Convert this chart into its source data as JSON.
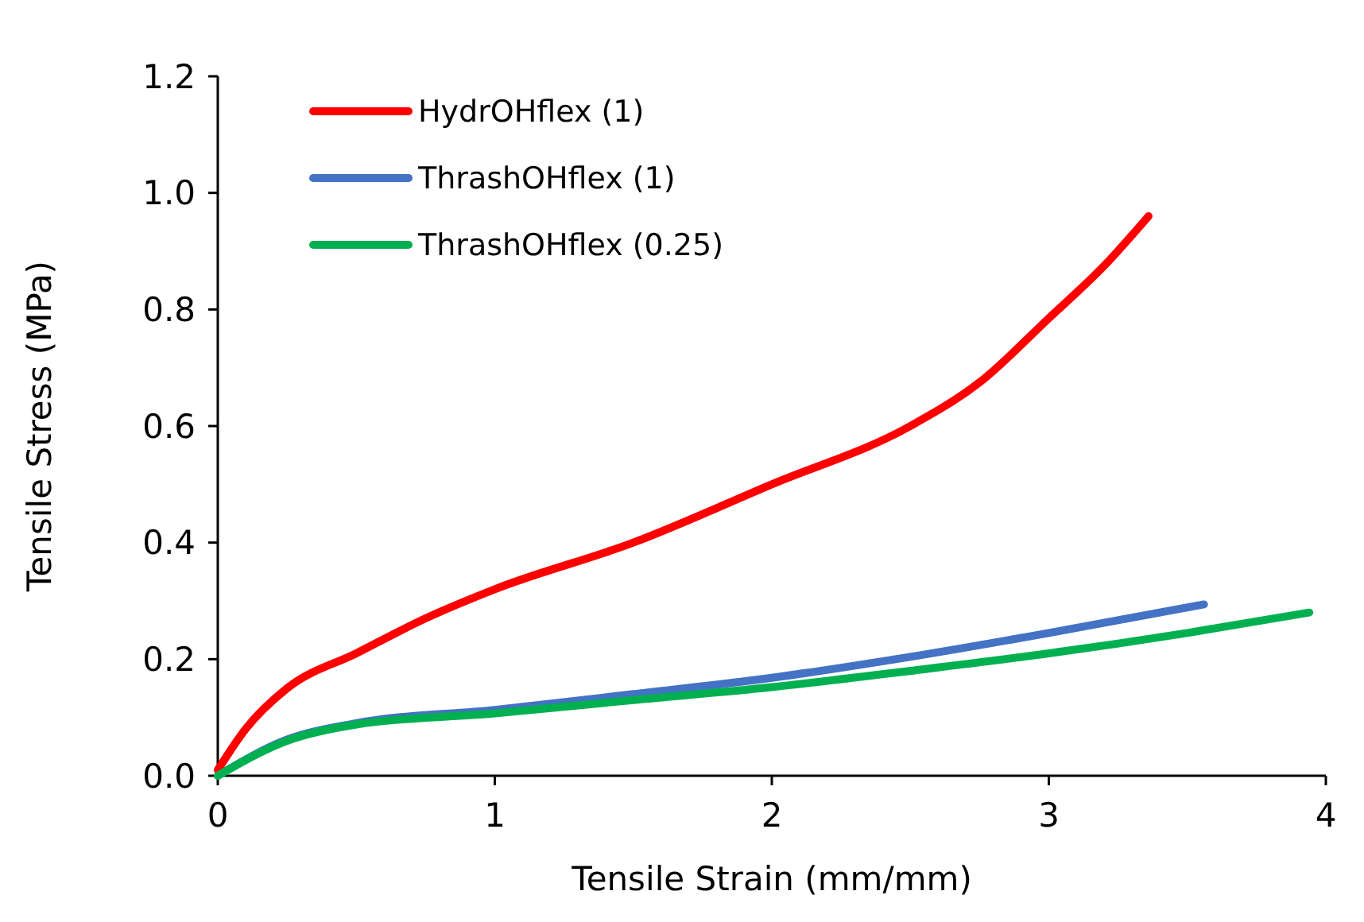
{
  "chart_data": {
    "type": "line",
    "xlabel": "Tensile Strain (mm/mm)",
    "ylabel": "Tensile Stress (MPa)",
    "xlim": [
      0,
      4
    ],
    "xticks": [
      0,
      1,
      2,
      3,
      4
    ],
    "ylim": [
      0,
      1.2
    ],
    "yticks": [
      {
        "value": 0,
        "label": "0.0"
      },
      {
        "value": 0.2,
        "label": "0.2"
      },
      {
        "value": 0.4,
        "label": "0.4"
      },
      {
        "value": 0.6,
        "label": "0.6"
      },
      {
        "value": 0.8,
        "label": "0.8"
      },
      {
        "value": 1,
        "label": "1.0"
      },
      {
        "value": 1.2,
        "label": "1.2"
      }
    ],
    "grid": false,
    "legend": "top left",
    "line_style": "solid",
    "series": [
      {
        "name": "HydrOHflex (1)",
        "color": "#ff0000",
        "x": [
          0,
          0.1,
          0.25,
          0.5,
          0.75,
          1,
          1.5,
          2,
          2.5,
          2.75,
          3,
          3.2,
          3.36
        ],
        "values": [
          0.01,
          0.08,
          0.15,
          0.21,
          0.27,
          0.32,
          0.4,
          0.5,
          0.6,
          0.675,
          0.785,
          0.875,
          0.96
        ]
      },
      {
        "name": "ThrashOHflex (1)",
        "color": "#4472c4",
        "x": [
          0,
          0.25,
          0.5,
          1,
          1.5,
          2,
          2.5,
          3,
          3.56
        ],
        "values": [
          0,
          0.062,
          0.09,
          0.113,
          0.14,
          0.168,
          0.204,
          0.245,
          0.294
        ]
      },
      {
        "name": "ThrashOHflex (0.25)",
        "color": "#00b050",
        "x": [
          0,
          0.25,
          0.5,
          1,
          1.5,
          2,
          2.5,
          3,
          3.5,
          3.94
        ],
        "values": [
          0,
          0.06,
          0.088,
          0.107,
          0.13,
          0.152,
          0.18,
          0.21,
          0.245,
          0.28
        ]
      }
    ]
  }
}
